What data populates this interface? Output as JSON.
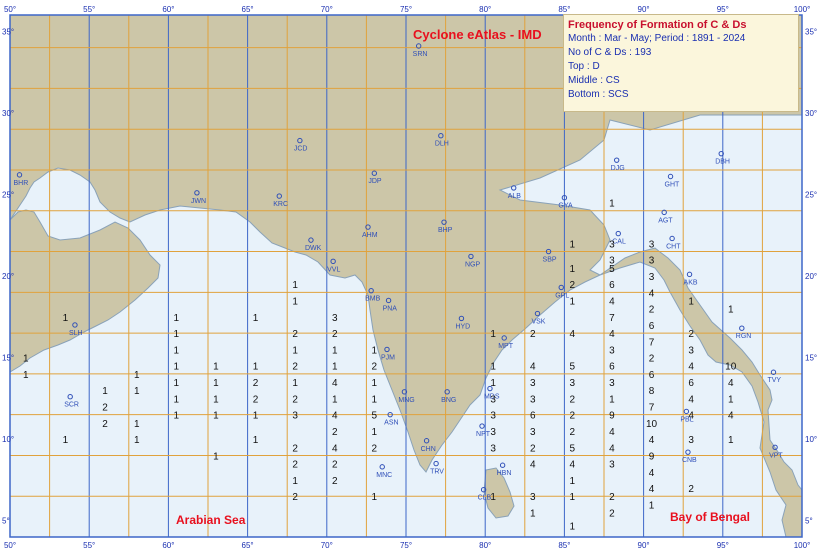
{
  "title": "Cyclone eAtlas - IMD",
  "legend": {
    "heading": "Frequency of Formation of C & Ds",
    "period_line": "Month  :  Mar - May;  Period  :  1891 - 2024",
    "count_line": "No of C & Ds  :  193",
    "top_line": "Top  :  D",
    "middle_line": "Middle  :  CS",
    "bottom_line": "Bottom  :  SCS"
  },
  "seas": {
    "arabian": "Arabian Sea",
    "bengal": "Bay of Bengal"
  },
  "lon_labels": [
    "50°",
    "55°",
    "60°",
    "65°",
    "70°",
    "75°",
    "80°",
    "85°",
    "90°",
    "95°",
    "100°"
  ],
  "lat_labels": [
    "5°",
    "10°",
    "15°",
    "20°",
    "25°",
    "30°",
    "35°"
  ],
  "cities": [
    {
      "code": "SRN",
      "lon": 75.8,
      "lat": 34.1
    },
    {
      "code": "DLH",
      "lon": 77.2,
      "lat": 28.6
    },
    {
      "code": "JCD",
      "lon": 68.3,
      "lat": 28.3
    },
    {
      "code": "BHR",
      "lon": 50.6,
      "lat": 26.2
    },
    {
      "code": "JDP",
      "lon": 73.0,
      "lat": 26.3
    },
    {
      "code": "ALB",
      "lon": 81.8,
      "lat": 25.4
    },
    {
      "code": "DJG",
      "lon": 88.3,
      "lat": 27.1
    },
    {
      "code": "DBH",
      "lon": 94.9,
      "lat": 27.5
    },
    {
      "code": "GHT",
      "lon": 91.7,
      "lat": 26.1
    },
    {
      "code": "JWN",
      "lon": 61.8,
      "lat": 25.1
    },
    {
      "code": "KRC",
      "lon": 67.0,
      "lat": 24.9
    },
    {
      "code": "GYA",
      "lon": 85.0,
      "lat": 24.8
    },
    {
      "code": "AGT",
      "lon": 91.3,
      "lat": 23.9
    },
    {
      "code": "CAL",
      "lon": 88.4,
      "lat": 22.6
    },
    {
      "code": "AHM",
      "lon": 72.6,
      "lat": 23.0
    },
    {
      "code": "BHP",
      "lon": 77.4,
      "lat": 23.3
    },
    {
      "code": "DWK",
      "lon": 69.0,
      "lat": 22.2
    },
    {
      "code": "CHT",
      "lon": 91.8,
      "lat": 22.3
    },
    {
      "code": "NGP",
      "lon": 79.1,
      "lat": 21.2
    },
    {
      "code": "SBP",
      "lon": 84.0,
      "lat": 21.5
    },
    {
      "code": "VVL",
      "lon": 70.4,
      "lat": 20.9
    },
    {
      "code": "AKB",
      "lon": 92.9,
      "lat": 20.1
    },
    {
      "code": "GPL",
      "lon": 84.8,
      "lat": 19.3
    },
    {
      "code": "BMB",
      "lon": 72.8,
      "lat": 19.1
    },
    {
      "code": "PNA",
      "lon": 73.9,
      "lat": 18.5
    },
    {
      "code": "SLH",
      "lon": 54.1,
      "lat": 17.0
    },
    {
      "code": "VSK",
      "lon": 83.3,
      "lat": 17.7
    },
    {
      "code": "HYD",
      "lon": 78.5,
      "lat": 17.4
    },
    {
      "code": "MPT",
      "lon": 81.2,
      "lat": 16.2
    },
    {
      "code": "RGN",
      "lon": 96.2,
      "lat": 16.8
    },
    {
      "code": "PJM",
      "lon": 73.8,
      "lat": 15.5
    },
    {
      "code": "TVY",
      "lon": 98.2,
      "lat": 14.1
    },
    {
      "code": "MNG",
      "lon": 74.9,
      "lat": 12.9
    },
    {
      "code": "MDS",
      "lon": 80.3,
      "lat": 13.1
    },
    {
      "code": "SCR",
      "lon": 53.8,
      "lat": 12.6
    },
    {
      "code": "BNG",
      "lon": 77.6,
      "lat": 12.9
    },
    {
      "code": "ASN",
      "lon": 74.0,
      "lat": 11.5
    },
    {
      "code": "PBL",
      "lon": 92.7,
      "lat": 11.7
    },
    {
      "code": "NPT",
      "lon": 79.8,
      "lat": 10.8
    },
    {
      "code": "CHN",
      "lon": 76.3,
      "lat": 9.9
    },
    {
      "code": "VPT",
      "lon": 98.3,
      "lat": 9.5
    },
    {
      "code": "CNB",
      "lon": 92.8,
      "lat": 9.2
    },
    {
      "code": "TRV",
      "lon": 76.9,
      "lat": 8.5
    },
    {
      "code": "HBN",
      "lon": 81.1,
      "lat": 8.4
    },
    {
      "code": "MNC",
      "lon": 73.5,
      "lat": 8.3
    },
    {
      "code": "CLB",
      "lon": 79.9,
      "lat": 6.9
    }
  ],
  "counts": [
    [
      70,
      "53.5",
      "17.5",
      1
    ],
    [
      37,
      "51",
      "15",
      1
    ],
    [
      37,
      "51",
      "14",
      1
    ],
    [
      114,
      "56",
      "13",
      1
    ],
    [
      114,
      "56",
      "12",
      2
    ],
    [
      114,
      "56",
      "11",
      2
    ],
    [
      147,
      "58",
      "13",
      1
    ],
    [
      147,
      "58",
      "11",
      1
    ],
    [
      147,
      "58",
      "10",
      1
    ],
    [
      147,
      "58",
      "14",
      1
    ],
    [
      70,
      "53.5",
      "10",
      1
    ],
    [
      188,
      "60.5",
      "17.5",
      1
    ],
    [
      188,
      "60.5",
      "16.5",
      1
    ],
    [
      188,
      "60.5",
      "15.5",
      1
    ],
    [
      188,
      "60.5",
      "14.5",
      1
    ],
    [
      188,
      "60.5",
      "13.5",
      1
    ],
    [
      188,
      "60.5",
      "12.5",
      1
    ],
    [
      188,
      "60.5",
      "11.5",
      1
    ],
    [
      228,
      "63",
      "14.5",
      1
    ],
    [
      228,
      "63",
      "13.5",
      1
    ],
    [
      228,
      "63",
      "12.5",
      1
    ],
    [
      228,
      "63",
      "11.5",
      1
    ],
    [
      228,
      "63",
      "9",
      1
    ],
    [
      268,
      "65.5",
      "17.5",
      1
    ],
    [
      268,
      "65.5",
      "14.5",
      1
    ],
    [
      268,
      "65.5",
      "13.5",
      2
    ],
    [
      268,
      "65.5",
      "12.5",
      2
    ],
    [
      268,
      "65.5",
      "11.5",
      1
    ],
    [
      268,
      "65.5",
      "10",
      1
    ],
    [
      308,
      "68",
      "19.5",
      1
    ],
    [
      308,
      "68",
      "18.5",
      1
    ],
    [
      308,
      "68",
      "16.5",
      2
    ],
    [
      308,
      "68",
      "15.5",
      1
    ],
    [
      308,
      "68",
      "14.5",
      2
    ],
    [
      308,
      "68",
      "13.5",
      1
    ],
    [
      308,
      "68",
      "12.5",
      2
    ],
    [
      308,
      "68",
      "11.5",
      3
    ],
    [
      308,
      "68",
      "9.5",
      2
    ],
    [
      308,
      "68",
      "8.5",
      2
    ],
    [
      308,
      "68",
      "7.5",
      1
    ],
    [
      308,
      "68",
      "6.5",
      2
    ],
    [
      348,
      "70.5",
      "17.5",
      3
    ],
    [
      348,
      "70.5",
      "16.5",
      2
    ],
    [
      348,
      "70.5",
      "15.5",
      1
    ],
    [
      348,
      "70.5",
      "14.5",
      1
    ],
    [
      348,
      "70.5",
      "13.5",
      4
    ],
    [
      348,
      "70.5",
      "12.5",
      1
    ],
    [
      348,
      "70.5",
      "11.5",
      4
    ],
    [
      348,
      "70.5",
      "10.5",
      2
    ],
    [
      348,
      "70.5",
      "9.5",
      4
    ],
    [
      348,
      "70.5",
      "8.5",
      2
    ],
    [
      348,
      "70.5",
      "7.5",
      2
    ],
    [
      387,
      "73",
      "15.5",
      1
    ],
    [
      387,
      "73",
      "14.5",
      2
    ],
    [
      387,
      "73",
      "13.5",
      1
    ],
    [
      387,
      "73",
      "12.5",
      1
    ],
    [
      387,
      "73",
      "11.5",
      5
    ],
    [
      387,
      "73",
      "10.5",
      1
    ],
    [
      387,
      "73",
      "9.5",
      2
    ],
    [
      387,
      "73",
      "6.5",
      1
    ],
    [
      508,
      "80.5",
      "16.5",
      1
    ],
    [
      508,
      "80.5",
      "14.5",
      1
    ],
    [
      508,
      "80.5",
      "13.5",
      1
    ],
    [
      508,
      "80.5",
      "12.5",
      3
    ],
    [
      508,
      "80.5",
      "11.5",
      3
    ],
    [
      508,
      "80.5",
      "10.5",
      3
    ],
    [
      508,
      "80.5",
      "9.5",
      3
    ],
    [
      508,
      "80.5",
      "6.5",
      1
    ],
    [
      545,
      "83",
      "16.5",
      2
    ],
    [
      545,
      "83",
      "14.5",
      4
    ],
    [
      545,
      "83",
      "13.5",
      3
    ],
    [
      545,
      "83",
      "12.5",
      3
    ],
    [
      545,
      "83",
      "11.5",
      6
    ],
    [
      545,
      "83",
      "10.5",
      3
    ],
    [
      545,
      "83",
      "9.5",
      2
    ],
    [
      545,
      "83",
      "8.5",
      4
    ],
    [
      545,
      "83",
      "6.5",
      3
    ],
    [
      545,
      "83",
      "5.5",
      1
    ],
    [
      584,
      "85.5",
      "22",
      1
    ],
    [
      584,
      "85.5",
      "20.5",
      1
    ],
    [
      584,
      "85.5",
      "19.5",
      2
    ],
    [
      584,
      "85.5",
      "18.5",
      1
    ],
    [
      584,
      "85.5",
      "16.5",
      4
    ],
    [
      584,
      "85.5",
      "14.5",
      5
    ],
    [
      584,
      "85.5",
      "13.5",
      3
    ],
    [
      584,
      "85.5",
      "12.5",
      2
    ],
    [
      584,
      "85.5",
      "11.5",
      2
    ],
    [
      584,
      "85.5",
      "10.5",
      2
    ],
    [
      584,
      "85.5",
      "9.5",
      5
    ],
    [
      584,
      "85.5",
      "8.5",
      4
    ],
    [
      584,
      "85.5",
      "7.5",
      1
    ],
    [
      584,
      "85.5",
      "6.5",
      1
    ],
    [
      584,
      "85.5",
      "4.7",
      1
    ],
    [
      624,
      "88",
      "24.5",
      1
    ],
    [
      624,
      "88",
      "22",
      3
    ],
    [
      624,
      "88",
      "21",
      3
    ],
    [
      624,
      "88",
      "20.5",
      5
    ],
    [
      624,
      "88",
      "19.5",
      6
    ],
    [
      624,
      "88",
      "18.5",
      4
    ],
    [
      624,
      "88",
      "17.5",
      7
    ],
    [
      624,
      "88",
      "16.5",
      4
    ],
    [
      624,
      "88",
      "15.5",
      3
    ],
    [
      624,
      "88",
      "14.5",
      6
    ],
    [
      624,
      "88",
      "13.5",
      3
    ],
    [
      624,
      "88",
      "12.5",
      1
    ],
    [
      624,
      "88",
      "11.5",
      9
    ],
    [
      624,
      "88",
      "10.5",
      4
    ],
    [
      624,
      "88",
      "9.5",
      4
    ],
    [
      624,
      "88",
      "8.5",
      3
    ],
    [
      624,
      "88",
      "6.5",
      2
    ],
    [
      624,
      "88",
      "5.5",
      2
    ],
    [
      663,
      "90.5",
      "22",
      3
    ],
    [
      663,
      "90.5",
      "21",
      3
    ],
    [
      663,
      "90.5",
      "20",
      3
    ],
    [
      663,
      "90.5",
      "19",
      4
    ],
    [
      663,
      "90.5",
      "18",
      2
    ],
    [
      663,
      "90.5",
      "17",
      6
    ],
    [
      663,
      "90.5",
      "16",
      7
    ],
    [
      663,
      "90.5",
      "15",
      2
    ],
    [
      663,
      "90.5",
      "14",
      6
    ],
    [
      663,
      "90.5",
      "13",
      8
    ],
    [
      663,
      "90.5",
      "12",
      7
    ],
    [
      663,
      "90.5",
      "11",
      10
    ],
    [
      663,
      "90.5",
      "10",
      4
    ],
    [
      663,
      "90.5",
      "9",
      9
    ],
    [
      663,
      "90.5",
      "8",
      4
    ],
    [
      663,
      "90.5",
      "7",
      4
    ],
    [
      663,
      "90.5",
      "6",
      1
    ],
    [
      703,
      "93",
      "18.5",
      1
    ],
    [
      703,
      "93",
      "16.5",
      2
    ],
    [
      703,
      "93",
      "15.5",
      3
    ],
    [
      703,
      "93",
      "14.5",
      4
    ],
    [
      703,
      "93",
      "13.5",
      6
    ],
    [
      703,
      "93",
      "12.5",
      4
    ],
    [
      703,
      "93",
      "11.5",
      4
    ],
    [
      703,
      "93",
      "10",
      3
    ],
    [
      703,
      "93",
      "7",
      2
    ],
    [
      743,
      "95.5",
      "18",
      1
    ],
    [
      743,
      "95.5",
      "14.5",
      10
    ],
    [
      743,
      "95.5",
      "13.5",
      4
    ],
    [
      743,
      "95.5",
      "12.5",
      1
    ],
    [
      743,
      "95.5",
      "11.5",
      4
    ],
    [
      743,
      "95.5",
      "10",
      1
    ]
  ]
}
